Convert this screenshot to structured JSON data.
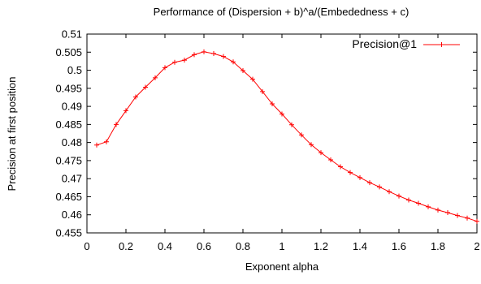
{
  "chart_data": {
    "type": "line",
    "title": "Performance of (Dispersion + b)^a/(Embededness + c)",
    "xlabel": "Exponent alpha",
    "ylabel": "Precision at first position",
    "xlim": [
      0,
      2
    ],
    "ylim": [
      0.455,
      0.51
    ],
    "xticks": [
      0,
      0.2,
      0.4,
      0.6,
      0.8,
      1,
      1.2,
      1.4,
      1.6,
      1.8,
      2
    ],
    "xtick_labels": [
      "0",
      "0.2",
      "0.4",
      "0.6",
      "0.8",
      "1",
      "1.2",
      "1.4",
      "1.6",
      "1.8",
      "2"
    ],
    "yticks": [
      0.455,
      0.46,
      0.465,
      0.47,
      0.475,
      0.48,
      0.485,
      0.49,
      0.495,
      0.5,
      0.505,
      0.51
    ],
    "ytick_labels": [
      "0.455",
      "0.46",
      "0.465",
      "0.47",
      "0.475",
      "0.48",
      "0.485",
      "0.49",
      "0.495",
      "0.5",
      "0.505",
      "0.51"
    ],
    "grid": false,
    "legend_position": "top-right",
    "series": [
      {
        "name": "Precision@1",
        "color": "#ff0000",
        "marker": "plus",
        "x": [
          0.05,
          0.1,
          0.15,
          0.2,
          0.25,
          0.3,
          0.35,
          0.4,
          0.45,
          0.5,
          0.55,
          0.6,
          0.65,
          0.7,
          0.75,
          0.8,
          0.85,
          0.9,
          0.95,
          1.0,
          1.05,
          1.1,
          1.15,
          1.2,
          1.25,
          1.3,
          1.35,
          1.4,
          1.45,
          1.5,
          1.55,
          1.6,
          1.65,
          1.7,
          1.75,
          1.8,
          1.85,
          1.9,
          1.95,
          2.0
        ],
        "y": [
          0.4793,
          0.4802,
          0.485,
          0.4888,
          0.4926,
          0.4953,
          0.4979,
          0.5007,
          0.5022,
          0.5028,
          0.5043,
          0.5051,
          0.5046,
          0.5038,
          0.5023,
          0.4999,
          0.4975,
          0.4941,
          0.4907,
          0.4879,
          0.4849,
          0.4821,
          0.4794,
          0.4772,
          0.4752,
          0.4733,
          0.4717,
          0.4703,
          0.4689,
          0.4677,
          0.4664,
          0.4652,
          0.4641,
          0.4632,
          0.4622,
          0.4613,
          0.4606,
          0.4598,
          0.4591,
          0.4582
        ]
      }
    ]
  }
}
